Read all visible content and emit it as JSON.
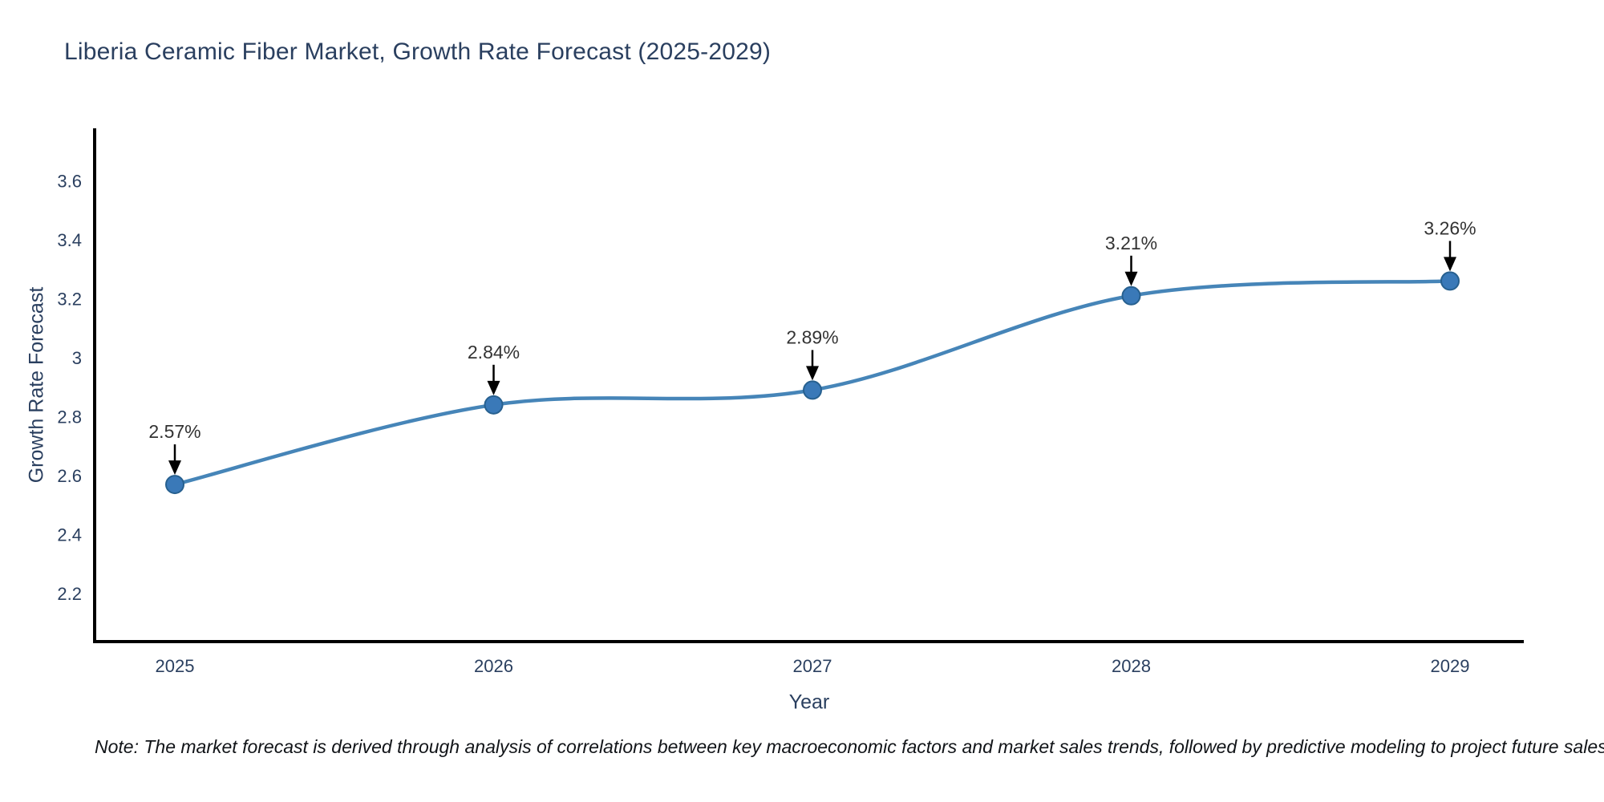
{
  "page": {
    "background": "#ffffff"
  },
  "chart_data": {
    "type": "line",
    "title": "Liberia Ceramic Fiber Market, Growth Rate Forecast (2025-2029)",
    "xlabel": "Year",
    "ylabel": "Growth Rate Forecast",
    "categories": [
      "2025",
      "2026",
      "2027",
      "2028",
      "2029"
    ],
    "values": [
      2.57,
      2.84,
      2.89,
      3.21,
      3.26
    ],
    "point_labels": [
      "2.57%",
      "2.84%",
      "2.89%",
      "3.21%",
      "3.26%"
    ],
    "yticks": [
      "2.2",
      "2.4",
      "2.6",
      "2.8",
      "3",
      "3.2",
      "3.4",
      "3.6"
    ],
    "ylim": [
      2.037,
      3.778
    ],
    "line_shape": "spline",
    "grid": false,
    "legend": "none",
    "colors": {
      "line": "#4685b8",
      "marker_fill": "#3a79b8",
      "marker_edge": "#27608f",
      "axis_line": "#000000",
      "tick_text": "#2a3f5f",
      "annotation_text": "#333333",
      "annotation_arrow": "#000000"
    }
  },
  "note": "Note: The market forecast is derived through analysis of correlations between key macroeconomic factors and market sales trends, followed by predictive modeling to project future sales"
}
